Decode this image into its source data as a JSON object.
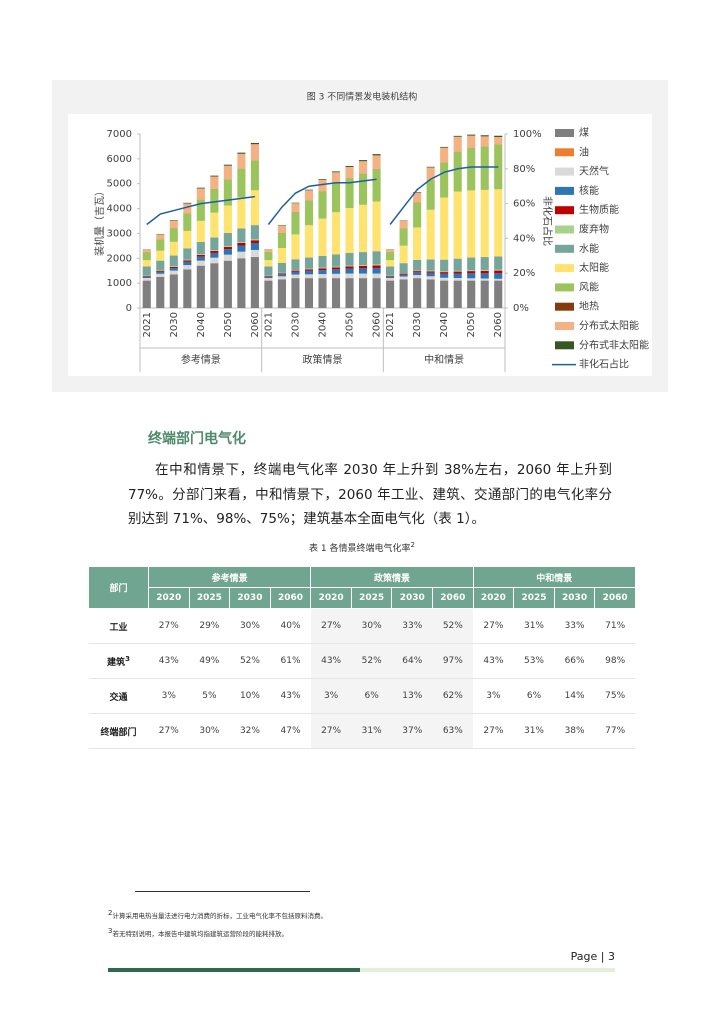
{
  "chart_data": {
    "type": "stacked-bar",
    "title": "图 3 不同情景发电装机结构",
    "y_label": "装机量（吉瓦）",
    "y2_label": "非化石占比",
    "group_labels": [
      "参考情景",
      "政策情景",
      "中和情景"
    ],
    "categories": [
      "2021",
      null,
      "2030",
      null,
      "2040",
      null,
      "2050",
      null,
      "2060",
      "2021",
      null,
      "2030",
      null,
      "2040",
      null,
      "2050",
      null,
      "2060",
      "2021",
      null,
      "2030",
      null,
      "2040",
      null,
      "2050",
      null,
      "2060"
    ],
    "ylim": [
      0,
      7000
    ],
    "yticks": [
      0,
      1000,
      2000,
      3000,
      4000,
      5000,
      6000,
      7000
    ],
    "y2lim": [
      0,
      100
    ],
    "y2ticks": [
      {
        "value": 0,
        "label": "0%"
      },
      {
        "value": 20,
        "label": "20%"
      },
      {
        "value": 40,
        "label": "40%"
      },
      {
        "value": 60,
        "label": "60%"
      },
      {
        "value": 80,
        "label": "80%"
      },
      {
        "value": 100,
        "label": "100%"
      }
    ],
    "series": [
      {
        "name": "煤",
        "color": "#7f7f7f",
        "values": [
          1100,
          1250,
          1350,
          1550,
          1700,
          1800,
          1900,
          2000,
          2050,
          1100,
          1150,
          1200,
          1200,
          1200,
          1200,
          1200,
          1200,
          1200,
          1100,
          1150,
          1200,
          1150,
          1100,
          1100,
          1100,
          1100,
          1100
        ]
      },
      {
        "name": "油",
        "color": "#ed7d31",
        "values": [
          5,
          5,
          5,
          5,
          5,
          5,
          5,
          5,
          5,
          5,
          5,
          5,
          5,
          5,
          5,
          5,
          5,
          5,
          5,
          5,
          5,
          5,
          5,
          5,
          5,
          5,
          5
        ]
      },
      {
        "name": "天然气",
        "color": "#d9d9d9",
        "values": [
          100,
          120,
          150,
          170,
          200,
          220,
          240,
          260,
          280,
          100,
          120,
          140,
          150,
          160,
          170,
          180,
          180,
          180,
          100,
          110,
          120,
          120,
          110,
          100,
          90,
          80,
          70
        ]
      },
      {
        "name": "核能",
        "color": "#2e75b6",
        "values": [
          50,
          70,
          100,
          130,
          160,
          190,
          220,
          250,
          280,
          50,
          80,
          110,
          140,
          160,
          180,
          200,
          210,
          220,
          50,
          80,
          110,
          140,
          160,
          180,
          200,
          210,
          220
        ]
      },
      {
        "name": "生物质能",
        "color": "#c00000",
        "values": [
          30,
          40,
          50,
          60,
          70,
          80,
          90,
          100,
          110,
          30,
          40,
          50,
          60,
          70,
          80,
          90,
          100,
          110,
          30,
          40,
          50,
          60,
          70,
          80,
          90,
          100,
          110
        ]
      },
      {
        "name": "废弃物",
        "color": "#a9d18e",
        "values": [
          20,
          20,
          25,
          25,
          30,
          30,
          35,
          35,
          40,
          20,
          20,
          25,
          25,
          30,
          30,
          35,
          35,
          40,
          20,
          20,
          25,
          25,
          30,
          30,
          35,
          35,
          40
        ]
      },
      {
        "name": "水能",
        "color": "#76a59b",
        "values": [
          370,
          400,
          430,
          460,
          490,
          510,
          530,
          550,
          570,
          370,
          400,
          430,
          450,
          470,
          490,
          510,
          520,
          530,
          370,
          400,
          430,
          450,
          470,
          490,
          510,
          520,
          530
        ]
      },
      {
        "name": "太阳能",
        "color": "#ffe36e",
        "values": [
          250,
          400,
          550,
          700,
          850,
          1000,
          1100,
          1250,
          1400,
          250,
          600,
          1000,
          1300,
          1500,
          1700,
          1800,
          1900,
          2000,
          250,
          700,
          1300,
          2000,
          2500,
          2700,
          2700,
          2700,
          2700
        ]
      },
      {
        "name": "风能",
        "color": "#9cc45c",
        "values": [
          320,
          450,
          550,
          700,
          850,
          950,
          1050,
          1150,
          1200,
          320,
          600,
          900,
          1000,
          1100,
          1150,
          1200,
          1250,
          1300,
          320,
          700,
          1000,
          1200,
          1400,
          1600,
          1700,
          1750,
          1800
        ]
      },
      {
        "name": "地热",
        "color": "#843c0c",
        "values": [
          5,
          5,
          5,
          5,
          5,
          5,
          5,
          5,
          5,
          5,
          5,
          5,
          5,
          5,
          5,
          5,
          5,
          5,
          5,
          5,
          5,
          5,
          5,
          5,
          5,
          5,
          5
        ]
      },
      {
        "name": "分布式太阳能",
        "color": "#f4b183",
        "values": [
          100,
          200,
          300,
          400,
          450,
          500,
          550,
          600,
          650,
          100,
          300,
          350,
          400,
          450,
          450,
          450,
          500,
          550,
          100,
          300,
          400,
          500,
          600,
          600,
          500,
          400,
          300
        ]
      },
      {
        "name": "分布式非太阳能",
        "color": "#375623",
        "values": [
          10,
          15,
          20,
          25,
          30,
          35,
          40,
          45,
          50,
          10,
          15,
          20,
          25,
          30,
          35,
          40,
          45,
          50,
          10,
          15,
          20,
          25,
          30,
          35,
          40,
          45,
          50
        ]
      },
      {
        "name": "非化石占比",
        "color": "#1f5f9f",
        "type": "line",
        "axis": "y2",
        "values": [
          48,
          54,
          56,
          58,
          60,
          61,
          62,
          63,
          64,
          48,
          58,
          66,
          70,
          71,
          72,
          72,
          73,
          74,
          48,
          58,
          68,
          74,
          78,
          80,
          81,
          81,
          81
        ]
      }
    ]
  },
  "section_title": "终端部门电气化",
  "paragraph": "在中和情景下，终端电气化率 2030 年上升到 38%左右，2060 年上升到 77%。分部门来看，中和情景下，2060 年工业、建筑、交通部门的电气化率分别达到 71%、98%、75%；建筑基本全面电气化（表 1）。",
  "table": {
    "caption": "表 1 各情景终端电气化率",
    "caption_note": "2",
    "corner": "部门",
    "groups": [
      "参考情景",
      "政策情景",
      "中和情景"
    ],
    "years": [
      "2020",
      "2025",
      "2030",
      "2060",
      "2020",
      "2025",
      "2030",
      "2060",
      "2020",
      "2025",
      "2030",
      "2060"
    ],
    "rows": [
      {
        "label": "工业",
        "cells": [
          "27%",
          "29%",
          "30%",
          "40%",
          "27%",
          "30%",
          "33%",
          "52%",
          "27%",
          "31%",
          "33%",
          "71%"
        ]
      },
      {
        "label": "建筑",
        "note": "3",
        "cells": [
          "43%",
          "49%",
          "52%",
          "61%",
          "43%",
          "52%",
          "64%",
          "97%",
          "43%",
          "53%",
          "66%",
          "98%"
        ]
      },
      {
        "label": "交通",
        "cells": [
          "3%",
          "5%",
          "10%",
          "43%",
          "3%",
          "6%",
          "13%",
          "62%",
          "3%",
          "6%",
          "14%",
          "75%"
        ]
      },
      {
        "label": "终端部门",
        "cells": [
          "27%",
          "30%",
          "32%",
          "47%",
          "27%",
          "31%",
          "37%",
          "63%",
          "27%",
          "31%",
          "38%",
          "77%"
        ]
      }
    ]
  },
  "footnotes": [
    {
      "mark": "2",
      "text": "计算采用电热当量法进行电力消费的折标，工业电气化率不包括原料消费。"
    },
    {
      "mark": "3",
      "text": "若无特别说明，本报告中建筑均指建筑运营阶段的能耗排放。"
    }
  ],
  "page_label": "Page | 3"
}
